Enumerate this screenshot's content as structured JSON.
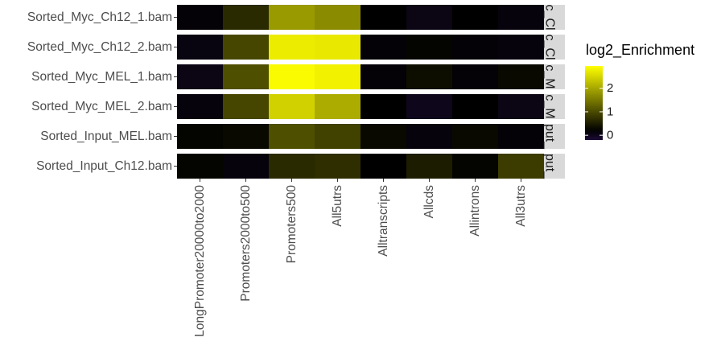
{
  "chart_data": {
    "type": "heatmap",
    "rows": [
      "Sorted_Myc_Ch12_1.bam",
      "Sorted_Myc_Ch12_2.bam",
      "Sorted_Myc_MEL_1.bam",
      "Sorted_Myc_MEL_2.bam",
      "Sorted_Input_MEL.bam",
      "Sorted_Input_Ch12.bam"
    ],
    "facet_strips": [
      "c_Cl",
      "c_Cl",
      "c_M",
      "c_M",
      "put_",
      "put_"
    ],
    "columns": [
      "LongPromoter20000to2000",
      "Promoters2000to500",
      "Promoters500",
      "All5utrs",
      "Alltranscripts",
      "Allcds",
      "Allintrons",
      "All3utrs"
    ],
    "values": [
      [
        0.15,
        0.65,
        1.85,
        1.7,
        0.2,
        0.05,
        0.2,
        0.1
      ],
      [
        0.08,
        0.95,
        2.75,
        2.7,
        0.15,
        0.25,
        0.15,
        0.1
      ],
      [
        0.05,
        1.05,
        2.9,
        2.8,
        0.15,
        0.35,
        0.15,
        0.3
      ],
      [
        0.1,
        0.95,
        2.45,
        2.05,
        0.2,
        0.0,
        0.2,
        0.05
      ],
      [
        0.25,
        0.3,
        1.05,
        0.9,
        0.3,
        0.1,
        0.3,
        0.15
      ],
      [
        0.25,
        0.1,
        0.65,
        0.7,
        0.2,
        0.5,
        0.25,
        0.85
      ]
    ],
    "legend": {
      "title": "log2_Enrichment",
      "ticks": [
        0,
        1,
        2
      ],
      "range": [
        -0.2,
        2.95
      ],
      "colors": [
        "#1c0c36",
        "#000000",
        "#ffff00"
      ],
      "midpoint": 0.2
    }
  }
}
